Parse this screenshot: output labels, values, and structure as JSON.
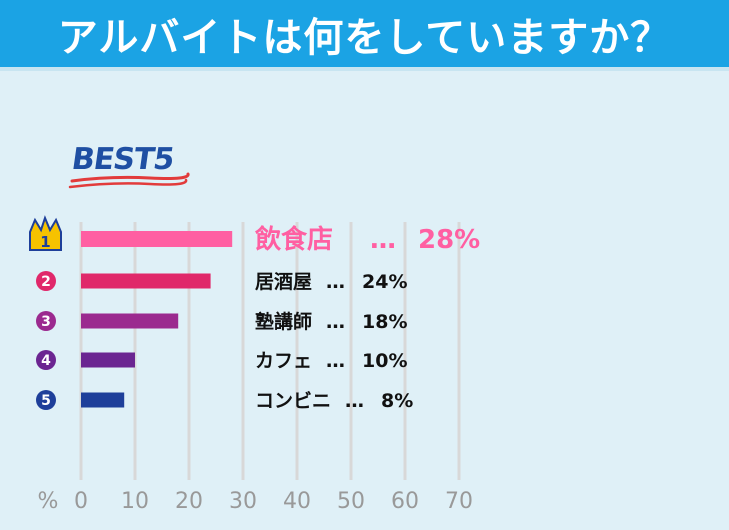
{
  "header": {
    "title": "アルバイトは何をしていますか？"
  },
  "best_label": "BEST5",
  "colors": {
    "header_bg": "#1ba3e4",
    "page_bg": "#dff0f7",
    "rank1": "#ff5fa2",
    "rank2": "#e0286a",
    "rank3": "#9b2a8f",
    "rank4": "#6b2591",
    "rank5": "#1e3f9a",
    "grid": "#d8d8d8",
    "best_underline": "#e23b3b"
  },
  "chart_data": {
    "type": "bar",
    "orientation": "horizontal",
    "unit_label": "%",
    "xlim": [
      0,
      70
    ],
    "xticks": [
      "0",
      "10",
      "20",
      "30",
      "40",
      "50",
      "60",
      "70"
    ],
    "grid": true,
    "categories": [
      "飲食店",
      "居酒屋",
      "塾講師",
      "カフェ",
      "コンビニ"
    ],
    "ranks": [
      "1",
      "2",
      "3",
      "4",
      "5"
    ],
    "values": [
      28,
      24,
      18,
      10,
      8
    ],
    "value_labels": [
      "28%",
      "24%",
      "18%",
      "10%",
      "8%"
    ],
    "separator": "…"
  }
}
